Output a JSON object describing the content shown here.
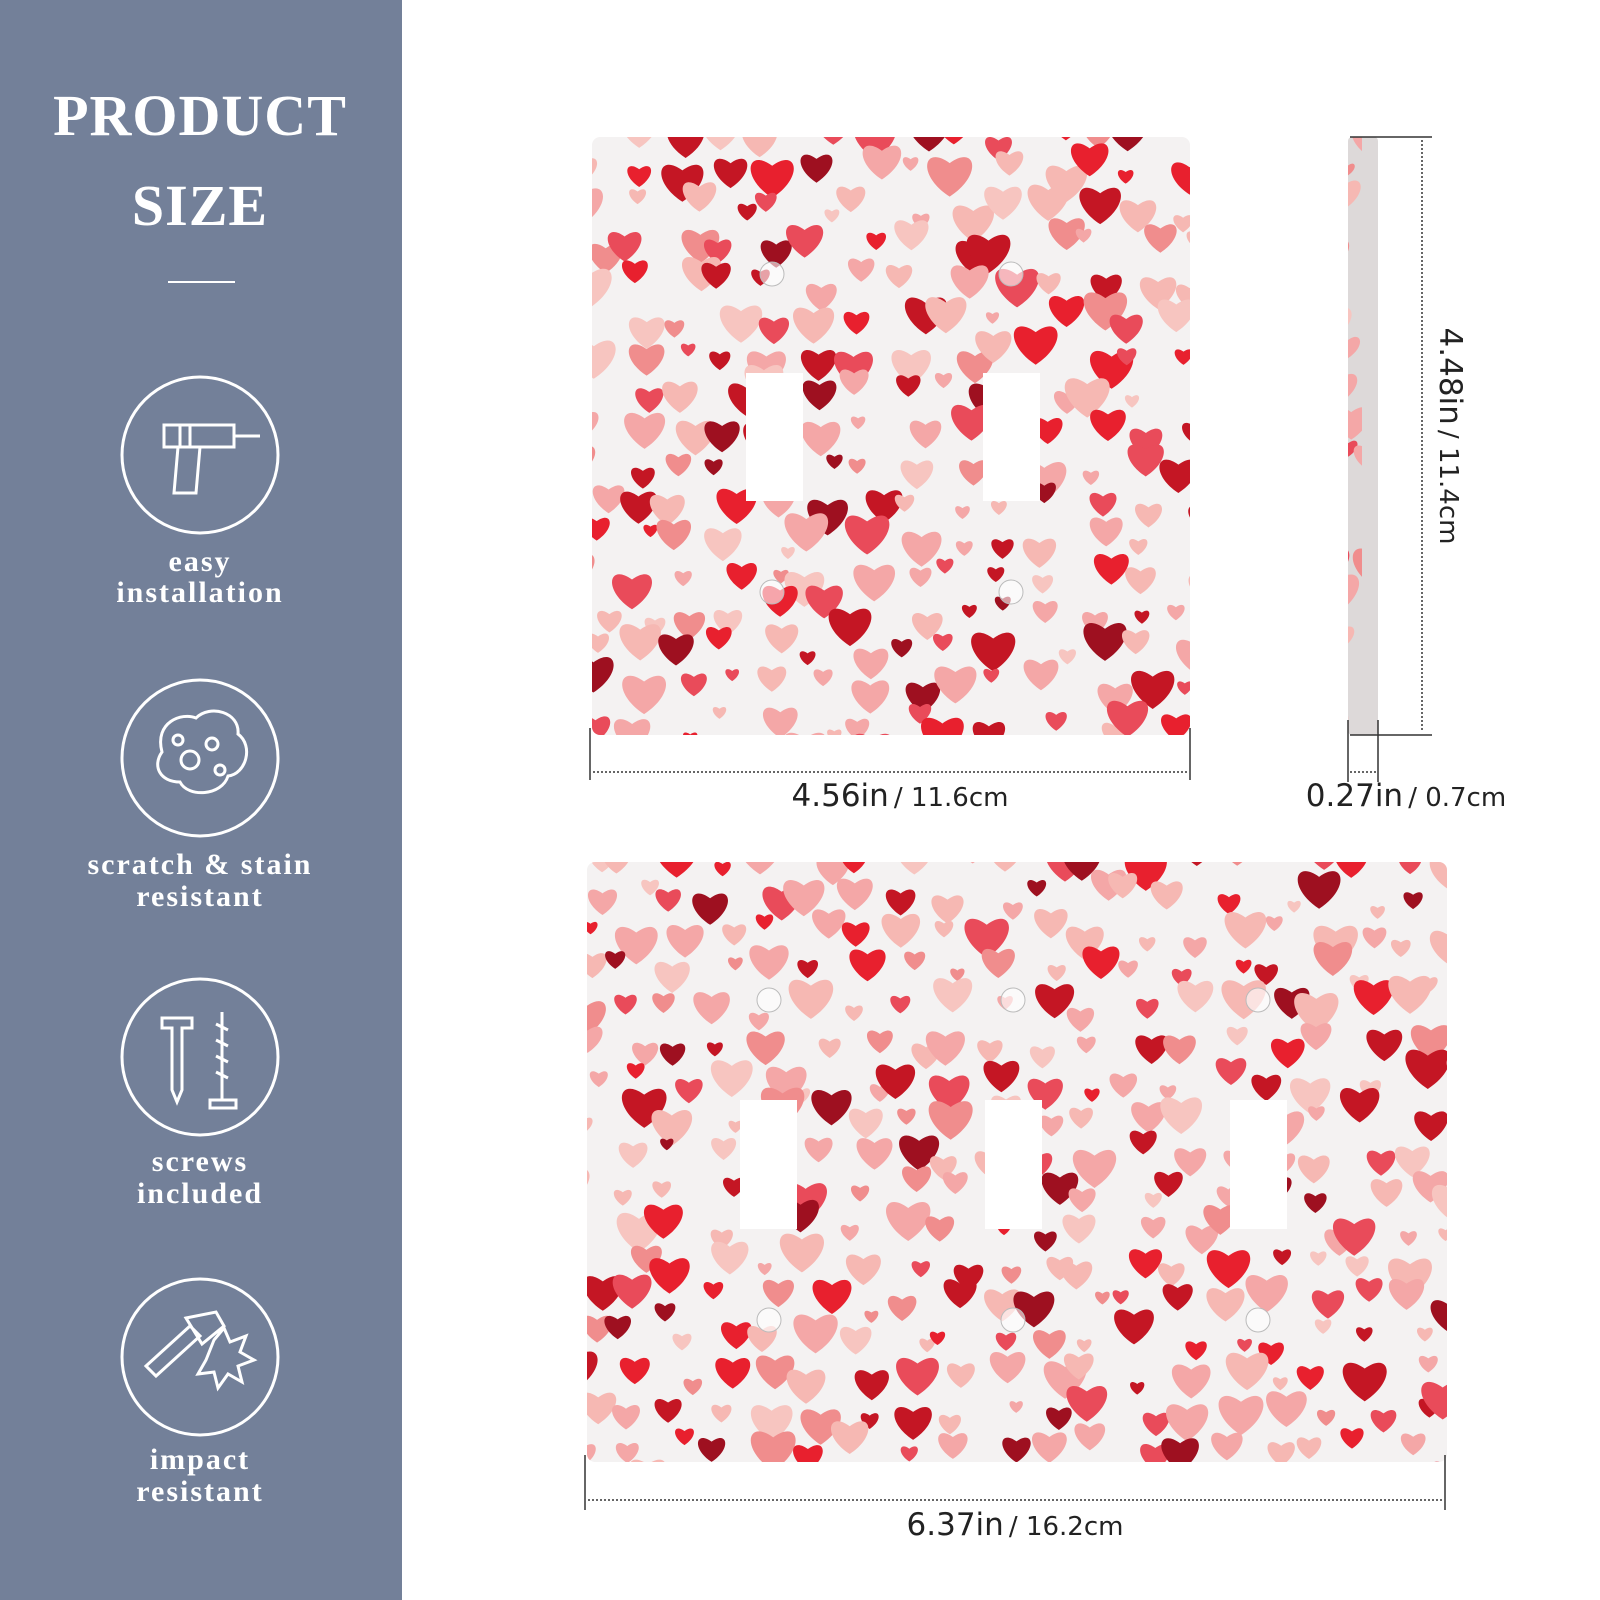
{
  "header": {
    "title_lines": [
      "PRODUCT",
      "SIZE"
    ]
  },
  "features": [
    {
      "lines": [
        "easy",
        "installation"
      ]
    },
    {
      "lines": [
        "scratch & stain",
        "resistant"
      ]
    },
    {
      "lines": [
        "screws",
        "included"
      ]
    },
    {
      "lines": [
        "impact",
        "resistant"
      ]
    }
  ],
  "dimensions": {
    "double_width": {
      "primary": "4.56in",
      "secondary": "/ 11.6cm"
    },
    "height": {
      "primary": "4.48in",
      "secondary": "/ 11.4cm"
    },
    "depth": {
      "primary": "0.27in",
      "secondary": "/ 0.7cm"
    },
    "triple_width": {
      "primary": "6.37in",
      "secondary": "/ 16.2cm"
    }
  }
}
